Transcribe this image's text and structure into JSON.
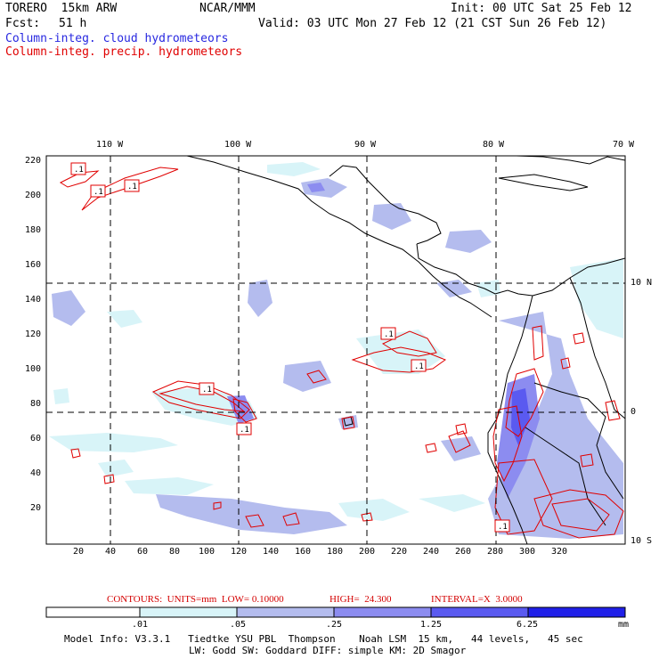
{
  "header": {
    "model": "TORERO  15km ARW",
    "center": "NCAR/MMM",
    "init": "Init: 00 UTC Sat 25 Feb 12",
    "fcst_label": "Fcst:",
    "fcst_value": "51 h",
    "valid": "Valid: 03 UTC Mon 27 Feb 12 (21 CST Sun 26 Feb 12)",
    "line_cloud": "Column-integ. cloud hydrometeors",
    "line_precip": "Column-integ. precip. hydrometeors"
  },
  "colors": {
    "cloud_text": "#2828e0",
    "precip_text": "#e00000",
    "contour": "#e00000",
    "land_line": "#000000"
  },
  "map": {
    "lon_labels": [
      "110 W",
      "100 W",
      "90 W",
      "80 W",
      "70 W"
    ],
    "lat_labels_right": [
      "10 N",
      "0",
      "10 S"
    ],
    "x_ticks": [
      "20",
      "40",
      "60",
      "80",
      "100",
      "120",
      "140",
      "160",
      "180",
      "200",
      "220",
      "240",
      "260",
      "280",
      "300",
      "320"
    ],
    "y_ticks": [
      "220",
      "200",
      "180",
      "160",
      "140",
      "120",
      "100",
      "80",
      "60",
      "40",
      "20"
    ],
    "contour_labels": [
      ".1",
      ".1",
      ".1",
      ".1",
      ".1",
      ".1",
      ".1",
      ".1"
    ]
  },
  "contour_info": {
    "units": "CONTOURS:  UNITS=mm  LOW= 0.10000",
    "high": "HIGH=  24.300",
    "interval": "INTERVAL=X  3.0000"
  },
  "colorbar": {
    "levels": [
      ".01",
      ".05",
      ".25",
      "1.25",
      "6.25"
    ],
    "unit": "mm",
    "colors": [
      "#ffffff",
      "#d8f4f8",
      "#b4bcee",
      "#8c8cf0",
      "#5a5af0",
      "#2020e8"
    ]
  },
  "footer": {
    "line1": "Model Info: V3.3.1   Tiedtke YSU PBL  Thompson    Noah LSM  15 km,   44 levels,   45 sec",
    "line2": "LW: Godd SW: Goddard DIFF: simple KM: 2D Smagor"
  }
}
